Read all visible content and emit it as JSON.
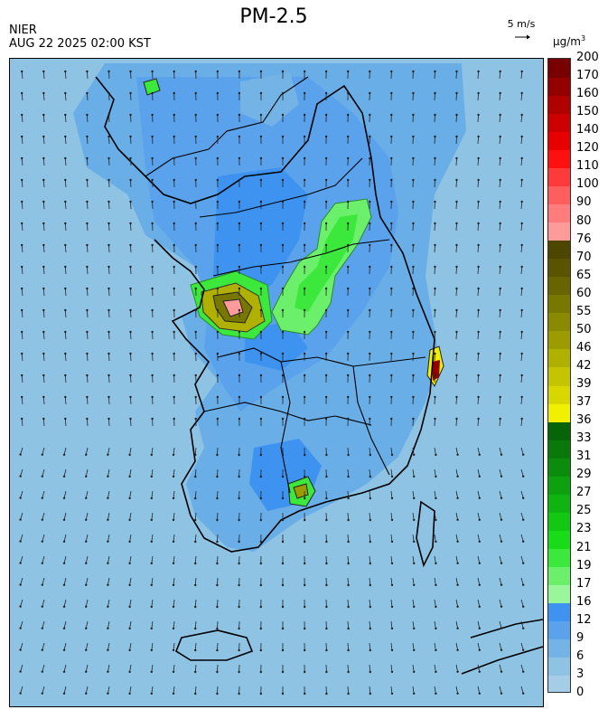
{
  "header": {
    "title": "PM-2.5",
    "agency": "NIER",
    "issued": "AUG 22 2025 02:00 KST",
    "wind_reference": "5 m/s",
    "unit_base": "μg/m",
    "unit_exp": "3"
  },
  "colorbar": {
    "labels": [
      "0",
      "3",
      "6",
      "9",
      "12",
      "16",
      "17",
      "19",
      "21",
      "23",
      "25",
      "27",
      "29",
      "31",
      "33",
      "36",
      "37",
      "39",
      "42",
      "46",
      "50",
      "55",
      "60",
      "65",
      "70",
      "76",
      "80",
      "90",
      "100",
      "110",
      "120",
      "140",
      "150",
      "160",
      "170",
      "200"
    ],
    "colors": [
      "#a6cde8",
      "#8fc3e4",
      "#74b3e6",
      "#5aa3ec",
      "#3f93f0",
      "#9bf59b",
      "#6cf06c",
      "#3ce83c",
      "#18dc18",
      "#12c812",
      "#10b410",
      "#0ea00e",
      "#0c8c0c",
      "#0a780a",
      "#086408",
      "#f0f000",
      "#d8d800",
      "#c4c400",
      "#b0b000",
      "#9c9c00",
      "#8a8a00",
      "#787800",
      "#686400",
      "#5a5400",
      "#4c4600",
      "#ff9a9a",
      "#ff7c7c",
      "#ff5e5e",
      "#ff3a3a",
      "#ff1010",
      "#e80000",
      "#cc0000",
      "#b00000",
      "#940000",
      "#780000"
    ]
  }
}
